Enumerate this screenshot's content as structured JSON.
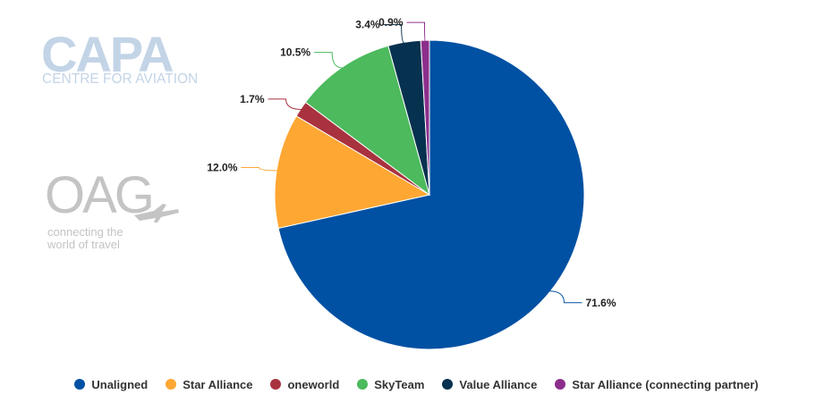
{
  "logos": {
    "capa": {
      "main": "CAPA",
      "sub": "CENTRE FOR AVIATION"
    },
    "oag": {
      "main": "OAG",
      "line1": "connecting the",
      "line2": "world of travel"
    }
  },
  "chart_data": {
    "type": "pie",
    "title": "",
    "legend_position": "bottom",
    "slices": [
      {
        "name": "Unaligned",
        "value": 71.6,
        "label": "71.6%",
        "color": "#0051a3"
      },
      {
        "name": "Star Alliance",
        "value": 12.0,
        "label": "12.0%",
        "color": "#ffa733"
      },
      {
        "name": "oneworld",
        "value": 1.7,
        "label": "1.7%",
        "color": "#a8323e"
      },
      {
        "name": "SkyTeam",
        "value": 10.5,
        "label": "10.5%",
        "color": "#4cba5d"
      },
      {
        "name": "Value Alliance",
        "value": 3.4,
        "label": "3.4%",
        "color": "#06314f"
      },
      {
        "name": "Star Alliance (connecting partner)",
        "value": 0.9,
        "label": "0.9%",
        "color": "#8c2f8c"
      }
    ]
  }
}
